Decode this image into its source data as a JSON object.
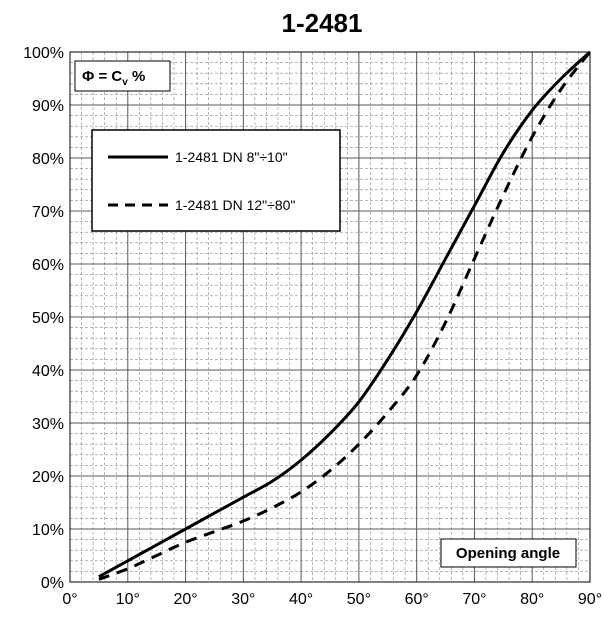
{
  "chart_data": {
    "type": "line",
    "title": "1-2481",
    "y_annotation": {
      "phi": "Φ = C",
      "sub": "v",
      "unit": " %"
    },
    "x_annotation": "Opening angle",
    "xlim": [
      0,
      90
    ],
    "ylim": [
      0,
      100
    ],
    "x_ticks": [
      "0°",
      "10°",
      "20°",
      "30°",
      "40°",
      "50°",
      "60°",
      "70°",
      "80°",
      "90°"
    ],
    "y_ticks": [
      "0%",
      "10%",
      "20%",
      "30%",
      "40%",
      "50%",
      "60%",
      "70%",
      "80%",
      "90%",
      "100%"
    ],
    "grid": true,
    "legend_position": "top-left",
    "series": [
      {
        "name": "1-2481 DN 8\"÷10\"",
        "style": "solid",
        "x": [
          5,
          10,
          15,
          20,
          25,
          30,
          35,
          40,
          45,
          50,
          55,
          60,
          65,
          70,
          75,
          80,
          85,
          90
        ],
        "y": [
          1,
          4,
          7,
          10,
          13,
          16,
          19,
          23,
          28,
          34,
          42,
          51,
          61,
          71,
          81,
          89,
          95,
          100
        ]
      },
      {
        "name": "1-2481 DN 12\"÷80\"",
        "style": "dashed",
        "x": [
          5,
          10,
          15,
          20,
          25,
          30,
          35,
          40,
          45,
          50,
          55,
          60,
          65,
          70,
          75,
          80,
          85,
          90
        ],
        "y": [
          0.5,
          2.5,
          5,
          7.5,
          9.5,
          11.5,
          14,
          17,
          21,
          26,
          32,
          39,
          49,
          61,
          73,
          84,
          93,
          100
        ]
      }
    ]
  }
}
